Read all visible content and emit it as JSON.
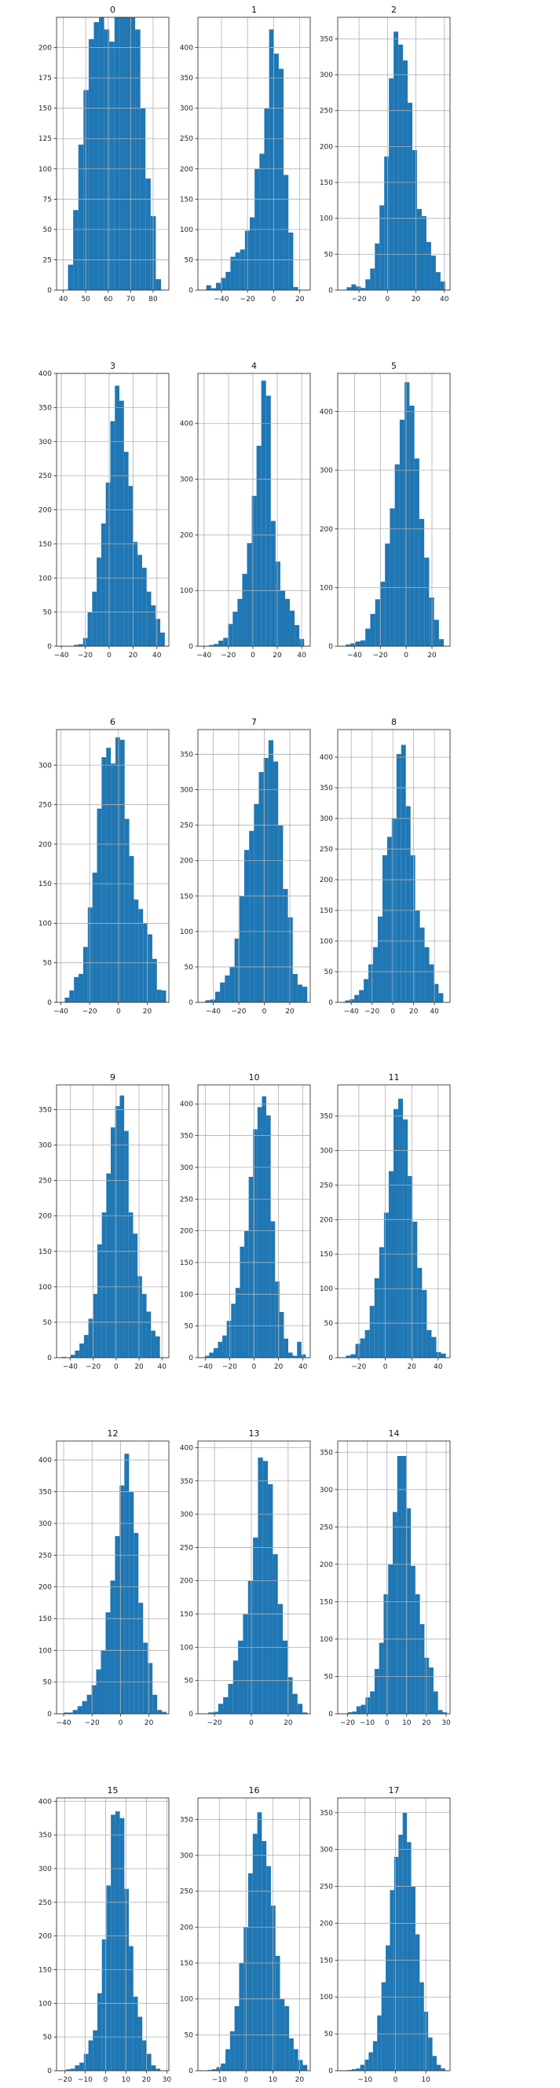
{
  "chart_data": [
    {
      "type": "bar",
      "title": "0",
      "bar_color": "#1f77b4",
      "grid": true,
      "x": [
        42.1,
        44.4,
        46.7,
        49.0,
        51.3,
        53.6,
        55.9,
        58.2,
        60.5,
        62.8,
        65.1,
        67.4,
        69.7,
        72.0,
        74.3,
        76.6,
        78.9,
        81.2,
        83.5
      ],
      "values": [
        21,
        66,
        120,
        165,
        207,
        221,
        225,
        215,
        205,
        240,
        242,
        247,
        240,
        215,
        150,
        92,
        61,
        9,
        0
      ],
      "bin_width": 2.3,
      "xlim": [
        37,
        87
      ],
      "ylim": [
        0,
        225
      ],
      "xticks": [
        40,
        50,
        60,
        70,
        80
      ],
      "yticks": [
        0,
        25,
        50,
        75,
        100,
        125,
        150,
        175,
        200
      ]
    },
    {
      "type": "bar",
      "title": "1",
      "bar_color": "#1f77b4",
      "grid": true,
      "x": [
        -51.6,
        -47.9,
        -44.2,
        -40.5,
        -36.8,
        -33.1,
        -29.4,
        -25.7,
        -22.0,
        -18.3,
        -14.6,
        -10.9,
        -7.2,
        -3.5,
        0.2,
        3.9,
        7.6,
        11.3,
        15.0,
        18.7,
        22.4
      ],
      "values": [
        8,
        3,
        12,
        20,
        30,
        55,
        62,
        67,
        98,
        120,
        200,
        225,
        300,
        430,
        390,
        365,
        190,
        95,
        5,
        0,
        0
      ],
      "bin_width": 3.7,
      "xlim": [
        -58,
        28
      ],
      "ylim": [
        0,
        450
      ],
      "xticks": [
        -40,
        -20,
        0,
        20
      ],
      "yticks": [
        0,
        50,
        100,
        150,
        200,
        250,
        300,
        350,
        400
      ]
    },
    {
      "type": "bar",
      "title": "2",
      "bar_color": "#1f77b4",
      "grid": true,
      "x": [
        -28.7,
        -25.4,
        -22.1,
        -18.8,
        -15.5,
        -12.2,
        -8.9,
        -5.6,
        -2.3,
        1.0,
        4.3,
        7.6,
        10.9,
        14.2,
        17.5,
        20.8,
        24.1,
        27.4,
        30.7,
        34.0,
        37.3
      ],
      "values": [
        4,
        8,
        5,
        3,
        15,
        30,
        65,
        118,
        186,
        295,
        360,
        342,
        320,
        261,
        195,
        113,
        103,
        67,
        48,
        25,
        12
      ],
      "bin_width": 3.3,
      "xlim": [
        -35,
        44
      ],
      "ylim": [
        0,
        380
      ],
      "xticks": [
        -20,
        0,
        20,
        40
      ],
      "yticks": [
        0,
        50,
        100,
        150,
        200,
        250,
        300,
        350
      ]
    },
    {
      "type": "bar",
      "title": "3",
      "bar_color": "#1f77b4",
      "grid": true,
      "x": [
        -37.0,
        -33.2,
        -29.4,
        -25.6,
        -21.8,
        -18.0,
        -14.2,
        -10.4,
        -6.6,
        -2.8,
        1.0,
        4.8,
        8.6,
        12.4,
        16.2,
        20.0,
        23.8,
        27.6,
        31.4,
        35.2,
        39.0,
        42.8
      ],
      "values": [
        0,
        0,
        2,
        3,
        12,
        50,
        80,
        130,
        180,
        240,
        330,
        382,
        360,
        285,
        235,
        153,
        134,
        115,
        80,
        60,
        40,
        20
      ],
      "bin_width": 3.8,
      "xlim": [
        -44,
        50
      ],
      "ylim": [
        0,
        400
      ],
      "xticks": [
        -40,
        -20,
        0,
        20,
        40
      ],
      "yticks": [
        0,
        50,
        100,
        150,
        200,
        250,
        300,
        350,
        400
      ]
    },
    {
      "type": "bar",
      "title": "4",
      "bar_color": "#1f77b4",
      "grid": true,
      "x": [
        -36.0,
        -32.1,
        -28.2,
        -24.3,
        -20.4,
        -16.5,
        -12.6,
        -8.7,
        -4.8,
        -0.9,
        3.0,
        6.9,
        10.8,
        14.7,
        18.6,
        22.5,
        26.4,
        30.3,
        34.2,
        38.1
      ],
      "values": [
        2,
        4,
        10,
        15,
        40,
        62,
        85,
        130,
        185,
        270,
        360,
        477,
        450,
        225,
        152,
        100,
        85,
        64,
        38,
        13
      ],
      "bin_width": 3.9,
      "xlim": [
        -45,
        47
      ],
      "ylim": [
        0,
        490
      ],
      "xticks": [
        -40,
        -20,
        0,
        20,
        40
      ],
      "yticks": [
        0,
        100,
        200,
        300,
        400
      ]
    },
    {
      "type": "bar",
      "title": "5",
      "bar_color": "#1f77b4",
      "grid": true,
      "x": [
        -46.8,
        -43.0,
        -39.2,
        -35.4,
        -31.6,
        -27.8,
        -24.0,
        -20.2,
        -16.4,
        -12.6,
        -8.8,
        -5.0,
        -1.2,
        2.6,
        6.4,
        10.2,
        14.0,
        17.8,
        21.6,
        25.4,
        29.2
      ],
      "values": [
        3,
        5,
        8,
        10,
        30,
        55,
        80,
        110,
        175,
        235,
        310,
        386,
        450,
        410,
        320,
        217,
        151,
        83,
        45,
        12,
        0
      ],
      "bin_width": 3.8,
      "xlim": [
        -53,
        34
      ],
      "ylim": [
        0,
        465
      ],
      "xticks": [
        -40,
        -20,
        0,
        20
      ],
      "yticks": [
        0,
        100,
        200,
        300,
        400
      ]
    },
    {
      "type": "bar",
      "title": "6",
      "bar_color": "#1f77b4",
      "grid": true,
      "x": [
        -37.3,
        -34.1,
        -30.9,
        -27.7,
        -24.5,
        -21.3,
        -18.1,
        -14.9,
        -11.7,
        -8.5,
        -5.3,
        -2.1,
        1.1,
        4.3,
        7.5,
        10.7,
        13.9,
        17.1,
        20.3,
        23.5,
        26.7,
        29.9
      ],
      "values": [
        6,
        15,
        32,
        36,
        70,
        120,
        164,
        245,
        310,
        322,
        302,
        335,
        332,
        232,
        185,
        130,
        118,
        100,
        86,
        55,
        16,
        15
      ],
      "bin_width": 3.2,
      "xlim": [
        -43,
        35
      ],
      "ylim": [
        0,
        345
      ],
      "xticks": [
        -40,
        -20,
        0,
        20
      ],
      "yticks": [
        0,
        50,
        100,
        150,
        200,
        250,
        300
      ]
    },
    {
      "type": "bar",
      "title": "7",
      "bar_color": "#1f77b4",
      "grid": true,
      "x": [
        -46.1,
        -42.3,
        -38.5,
        -34.7,
        -30.9,
        -27.1,
        -23.3,
        -19.5,
        -15.7,
        -11.9,
        -8.1,
        -4.3,
        -0.5,
        3.3,
        7.1,
        10.9,
        14.7,
        18.5,
        22.3,
        26.1,
        29.9
      ],
      "values": [
        3,
        4,
        15,
        28,
        38,
        50,
        90,
        150,
        215,
        242,
        280,
        325,
        345,
        370,
        340,
        250,
        160,
        120,
        40,
        25,
        22
      ],
      "bin_width": 3.8,
      "xlim": [
        -52,
        36
      ],
      "ylim": [
        0,
        385
      ],
      "xticks": [
        -40,
        -20,
        0,
        20
      ],
      "yticks": [
        0,
        50,
        100,
        150,
        200,
        250,
        300,
        350
      ]
    },
    {
      "type": "bar",
      "title": "8",
      "bar_color": "#1f77b4",
      "grid": true,
      "x": [
        -46.0,
        -41.5,
        -37.0,
        -32.5,
        -28.0,
        -23.5,
        -19.0,
        -14.5,
        -10.0,
        -5.5,
        -1.0,
        3.5,
        8.0,
        12.5,
        17.0,
        21.5,
        26.0,
        30.5,
        35.0,
        39.5,
        44.0
      ],
      "values": [
        3,
        5,
        12,
        20,
        38,
        62,
        90,
        140,
        240,
        270,
        300,
        405,
        420,
        320,
        240,
        150,
        122,
        90,
        62,
        30,
        15
      ],
      "bin_width": 4.5,
      "xlim": [
        -53,
        55
      ],
      "ylim": [
        0,
        445
      ],
      "xticks": [
        -40,
        -20,
        0,
        20,
        40
      ],
      "yticks": [
        0,
        50,
        100,
        150,
        200,
        250,
        300,
        350,
        400
      ]
    },
    {
      "type": "bar",
      "title": "9",
      "bar_color": "#1f77b4",
      "grid": true,
      "x": [
        -47.6,
        -43.7,
        -39.8,
        -35.9,
        -32.0,
        -28.1,
        -24.2,
        -20.3,
        -16.4,
        -12.5,
        -8.6,
        -4.7,
        -0.8,
        3.1,
        7.0,
        10.9,
        14.8,
        18.7,
        22.6,
        26.5,
        30.4,
        34.3
      ],
      "values": [
        1,
        0,
        4,
        10,
        20,
        32,
        55,
        90,
        160,
        205,
        260,
        325,
        355,
        370,
        320,
        205,
        175,
        115,
        90,
        65,
        38,
        30
      ],
      "bin_width": 3.9,
      "xlim": [
        -52,
        46
      ],
      "ylim": [
        0,
        385
      ],
      "xticks": [
        -40,
        -20,
        0,
        20,
        40
      ],
      "yticks": [
        0,
        50,
        100,
        150,
        200,
        250,
        300,
        350
      ]
    },
    {
      "type": "bar",
      "title": "10",
      "bar_color": "#1f77b4",
      "grid": true,
      "x": [
        -40.4,
        -36.8,
        -33.2,
        -29.6,
        -26.0,
        -22.4,
        -18.8,
        -15.2,
        -11.6,
        -8.0,
        -4.4,
        -0.8,
        2.8,
        6.4,
        10.0,
        13.6,
        17.2,
        20.8,
        24.4,
        28.0,
        31.6,
        35.2,
        38.8
      ],
      "values": [
        3,
        8,
        15,
        25,
        35,
        58,
        85,
        110,
        175,
        200,
        285,
        360,
        395,
        412,
        382,
        215,
        120,
        72,
        30,
        8,
        3,
        25,
        5
      ],
      "bin_width": 3.6,
      "xlim": [
        -46,
        46
      ],
      "ylim": [
        0,
        430
      ],
      "xticks": [
        -40,
        -20,
        0,
        20,
        40
      ],
      "yticks": [
        0,
        50,
        100,
        150,
        200,
        250,
        300,
        350,
        400
      ]
    },
    {
      "type": "bar",
      "title": "11",
      "bar_color": "#1f77b4",
      "grid": true,
      "x": [
        -29.8,
        -26.2,
        -22.6,
        -19.0,
        -15.4,
        -11.8,
        -8.2,
        -4.6,
        -1.0,
        2.6,
        6.2,
        9.8,
        13.4,
        17.0,
        20.6,
        24.2,
        27.8,
        31.4,
        35.0,
        38.6,
        42.2
      ],
      "values": [
        3,
        5,
        20,
        28,
        40,
        75,
        115,
        160,
        210,
        270,
        360,
        375,
        345,
        263,
        197,
        130,
        98,
        40,
        30,
        8,
        6
      ],
      "bin_width": 3.6,
      "xlim": [
        -36,
        49
      ],
      "ylim": [
        0,
        395
      ],
      "xticks": [
        -20,
        0,
        20,
        40
      ],
      "yticks": [
        0,
        50,
        100,
        150,
        200,
        250,
        300,
        350
      ]
    },
    {
      "type": "bar",
      "title": "12",
      "bar_color": "#1f77b4",
      "grid": true,
      "x": [
        -40.2,
        -36.9,
        -33.6,
        -30.3,
        -27.0,
        -23.7,
        -20.4,
        -17.1,
        -13.8,
        -10.5,
        -7.2,
        -3.9,
        -0.6,
        2.7,
        6.0,
        9.3,
        12.6,
        15.9,
        19.2,
        22.5,
        25.8,
        29.1
      ],
      "values": [
        2,
        2,
        6,
        12,
        20,
        30,
        45,
        70,
        100,
        160,
        210,
        280,
        360,
        410,
        350,
        285,
        175,
        112,
        80,
        30,
        6,
        3
      ],
      "bin_width": 3.3,
      "xlim": [
        -45,
        34
      ],
      "ylim": [
        0,
        430
      ],
      "xticks": [
        -40,
        -20,
        0,
        20
      ],
      "yticks": [
        0,
        50,
        100,
        150,
        200,
        250,
        300,
        350,
        400
      ]
    },
    {
      "type": "bar",
      "title": "13",
      "bar_color": "#1f77b4",
      "grid": true,
      "x": [
        -23.4,
        -20.7,
        -18.0,
        -15.3,
        -12.6,
        -9.9,
        -7.2,
        -4.5,
        -1.8,
        0.9,
        3.6,
        6.3,
        9.0,
        11.7,
        14.4,
        17.0,
        19.7,
        22.4,
        25.1,
        27.8
      ],
      "values": [
        2,
        3,
        15,
        25,
        45,
        80,
        110,
        150,
        200,
        265,
        385,
        380,
        345,
        240,
        165,
        110,
        55,
        30,
        15,
        2
      ],
      "bin_width": 2.7,
      "xlim": [
        -29,
        32
      ],
      "ylim": [
        0,
        410
      ],
      "xticks": [
        -20,
        0,
        20
      ],
      "yticks": [
        0,
        50,
        100,
        150,
        200,
        250,
        300,
        350,
        400
      ]
    },
    {
      "type": "bar",
      "title": "14",
      "bar_color": "#1f77b4",
      "grid": true,
      "x": [
        -20.1,
        -17.8,
        -15.5,
        -13.2,
        -10.9,
        -8.6,
        -6.3,
        -4.0,
        -1.7,
        0.6,
        2.9,
        5.2,
        7.5,
        9.8,
        12.1,
        14.4,
        16.7,
        19.0,
        21.3,
        23.6,
        25.9,
        28.2
      ],
      "values": [
        2,
        3,
        10,
        12,
        22,
        30,
        60,
        95,
        160,
        200,
        270,
        345,
        345,
        275,
        198,
        160,
        120,
        75,
        62,
        30,
        5,
        2
      ],
      "bin_width": 2.3,
      "xlim": [
        -25,
        32
      ],
      "ylim": [
        0,
        365
      ],
      "xticks": [
        -20,
        -10,
        0,
        10,
        20,
        30
      ],
      "yticks": [
        0,
        50,
        100,
        150,
        200,
        250,
        300,
        350
      ]
    },
    {
      "type": "bar",
      "title": "15",
      "bar_color": "#1f77b4",
      "grid": true,
      "x": [
        -19.4,
        -17.2,
        -15.0,
        -12.8,
        -10.6,
        -8.4,
        -6.2,
        -4.0,
        -1.8,
        0.4,
        2.6,
        4.8,
        7.0,
        9.2,
        11.4,
        13.6,
        15.8,
        18.0,
        20.2,
        22.4,
        24.6
      ],
      "values": [
        2,
        3,
        8,
        12,
        25,
        45,
        60,
        115,
        195,
        275,
        380,
        385,
        375,
        270,
        185,
        110,
        80,
        45,
        25,
        8,
        3
      ],
      "bin_width": 2.2,
      "xlim": [
        -24,
        31
      ],
      "ylim": [
        0,
        405
      ],
      "xticks": [
        -20,
        -10,
        0,
        10,
        20,
        30
      ],
      "yticks": [
        0,
        50,
        100,
        150,
        200,
        250,
        300,
        350,
        400
      ]
    },
    {
      "type": "bar",
      "title": "16",
      "bar_color": "#1f77b4",
      "grid": true,
      "x": [
        -14.5,
        -12.8,
        -11.1,
        -9.4,
        -7.7,
        -6.0,
        -4.3,
        -2.6,
        -0.9,
        0.8,
        2.5,
        4.2,
        5.9,
        7.6,
        9.3,
        11.0,
        12.7,
        14.4,
        16.1,
        17.8,
        19.5,
        21.2
      ],
      "values": [
        1,
        2,
        5,
        10,
        30,
        55,
        90,
        150,
        200,
        275,
        330,
        360,
        320,
        285,
        230,
        160,
        100,
        90,
        45,
        30,
        15,
        8
      ],
      "bin_width": 1.7,
      "xlim": [
        -18,
        24
      ],
      "ylim": [
        0,
        380
      ],
      "xticks": [
        -10,
        0,
        10,
        20
      ],
      "yticks": [
        0,
        50,
        100,
        150,
        200,
        250,
        300,
        350
      ]
    },
    {
      "type": "bar",
      "title": "17",
      "bar_color": "#1f77b4",
      "grid": true,
      "x": [
        -15.8,
        -14.4,
        -13.0,
        -11.6,
        -10.2,
        -8.8,
        -7.4,
        -6.0,
        -4.6,
        -3.2,
        -1.8,
        -0.4,
        1.0,
        2.4,
        3.8,
        5.2,
        6.6,
        8.0,
        9.4,
        10.8,
        12.2,
        13.6,
        15.0
      ],
      "values": [
        1,
        2,
        3,
        8,
        15,
        25,
        40,
        75,
        120,
        170,
        245,
        290,
        320,
        350,
        310,
        250,
        185,
        120,
        80,
        45,
        20,
        8,
        3
      ],
      "bin_width": 1.4,
      "xlim": [
        -19,
        18
      ],
      "ylim": [
        0,
        370
      ],
      "xticks": [
        -10,
        0,
        10
      ],
      "yticks": [
        0,
        50,
        100,
        150,
        200,
        250,
        300,
        350
      ]
    }
  ]
}
